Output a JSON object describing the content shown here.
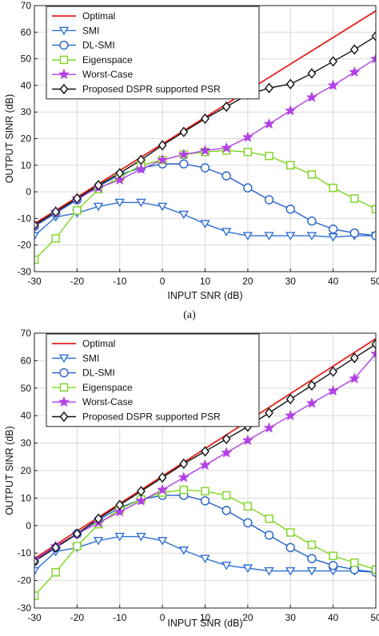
{
  "colors": {
    "Optimal": "#e3201b",
    "SMI": "#2f6fd3",
    "DL-SMI": "#2462c9",
    "Eigenspace": "#7ed321",
    "Worst-Case": "#b240e6",
    "Proposed DSPR supported PSR": "#111111",
    "grid": "#d9d9d9",
    "axis": "#222222"
  },
  "markers": {
    "Optimal": "none",
    "SMI": "triangle-down",
    "DL-SMI": "circle",
    "Eigenspace": "square",
    "Worst-Case": "star",
    "Proposed DSPR supported PSR": "diamond"
  },
  "chart_data": [
    {
      "type": "line",
      "panel_label": "(a)",
      "xlabel": "INPUT SNR (dB)",
      "ylabel": "OUTPUT SINR (dB)",
      "xlim": [
        -30,
        50
      ],
      "ylim": [
        -30,
        70
      ],
      "xticks": [
        -30,
        -20,
        -10,
        0,
        10,
        20,
        30,
        40,
        50
      ],
      "yticks": [
        -30,
        -20,
        -10,
        0,
        10,
        20,
        30,
        40,
        50,
        60,
        70
      ],
      "grid": true,
      "legend_position": "top-left",
      "x": [
        -30,
        -25,
        -20,
        -15,
        -10,
        -5,
        0,
        5,
        10,
        15,
        20,
        25,
        30,
        35,
        40,
        45,
        50
      ],
      "series": [
        {
          "name": "Optimal",
          "values": [
            -12,
            -7,
            -2,
            3,
            8,
            13,
            18,
            23,
            28,
            33,
            38,
            43,
            48,
            53,
            58,
            63,
            68
          ]
        },
        {
          "name": "SMI",
          "values": [
            -16.5,
            -9.5,
            -8,
            -5.5,
            -4,
            -4,
            -5.5,
            -8.5,
            -12,
            -15,
            -16.5,
            -16.5,
            -16.5,
            -16.5,
            -17,
            -16.5,
            -16.5
          ]
        },
        {
          "name": "DL-SMI",
          "values": [
            -13,
            -8,
            -3,
            2,
            6.5,
            9,
            10.5,
            10.5,
            9,
            6,
            1.5,
            -3,
            -6.5,
            -11,
            -14,
            -15.5,
            -16.5
          ]
        },
        {
          "name": "Eigenspace",
          "values": [
            -25.5,
            -17.5,
            -7,
            1,
            5.5,
            10,
            12,
            14,
            15,
            15.5,
            15,
            13.5,
            10,
            6.5,
            1.5,
            -2.5,
            -6.5
          ]
        },
        {
          "name": "Worst-Case",
          "values": [
            -12.5,
            -7.5,
            -2.5,
            1.5,
            4.5,
            8.5,
            12,
            14,
            15.5,
            16.5,
            20.5,
            25.5,
            30.5,
            35.5,
            40,
            45,
            50
          ]
        },
        {
          "name": "Proposed DSPR supported PSR",
          "values": [
            -12.5,
            -7.5,
            -2.5,
            2.5,
            7,
            12,
            17.5,
            22.5,
            27.5,
            32,
            36.5,
            39,
            40.5,
            44.5,
            49,
            53.5,
            58.5
          ]
        }
      ]
    },
    {
      "type": "line",
      "panel_label": "",
      "xlabel": "INPUT SNR (dB)",
      "ylabel": "OUTPUT SINR (dB)",
      "xlim": [
        -30,
        50
      ],
      "ylim": [
        -30,
        70
      ],
      "xticks": [
        -30,
        -20,
        -10,
        0,
        10,
        20,
        30,
        40,
        50
      ],
      "yticks": [
        -30,
        -20,
        -10,
        0,
        10,
        20,
        30,
        40,
        50,
        60,
        70
      ],
      "grid": true,
      "legend_position": "top-left",
      "x": [
        -30,
        -25,
        -20,
        -15,
        -10,
        -5,
        0,
        5,
        10,
        15,
        20,
        25,
        30,
        35,
        40,
        45,
        50
      ],
      "series": [
        {
          "name": "Optimal",
          "values": [
            -12,
            -7,
            -2,
            3,
            8,
            13,
            18,
            23,
            28,
            33,
            38,
            43,
            48,
            53,
            58,
            63,
            68
          ]
        },
        {
          "name": "SMI",
          "values": [
            -16.5,
            -9.5,
            -8,
            -5.5,
            -4,
            -4,
            -5.5,
            -9,
            -12,
            -14.5,
            -15.5,
            -16.5,
            -16.5,
            -16.5,
            -16.5,
            -16.5,
            -17
          ]
        },
        {
          "name": "DL-SMI",
          "values": [
            -13,
            -8,
            -3,
            2,
            6.5,
            9.5,
            11,
            11,
            9,
            5.5,
            1,
            -3.5,
            -8,
            -12,
            -14.5,
            -16,
            -17
          ]
        },
        {
          "name": "Eigenspace",
          "values": [
            -25.5,
            -17,
            -7.5,
            0.5,
            6,
            9.5,
            12,
            13,
            12.5,
            11,
            7,
            2.5,
            -2.5,
            -7,
            -11,
            -13.5,
            -16
          ]
        },
        {
          "name": "Worst-Case",
          "values": [
            -12.5,
            -7.5,
            -3,
            1,
            5,
            9,
            13,
            17.5,
            22,
            26.5,
            31,
            35.5,
            40,
            44.5,
            49,
            53.5,
            62.5
          ]
        },
        {
          "name": "Proposed DSPR supported PSR",
          "values": [
            -13,
            -8,
            -3,
            2.5,
            7.5,
            12.5,
            17.5,
            22.5,
            27,
            31.5,
            36,
            41,
            46,
            51,
            56,
            61,
            66
          ]
        }
      ]
    }
  ]
}
